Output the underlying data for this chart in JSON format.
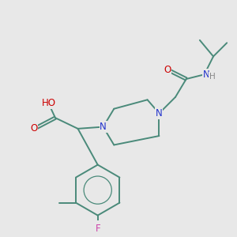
{
  "background_color": "#e8e8e8",
  "bond_color": "#4a8a7a",
  "atom_colors": {
    "N": "#2233cc",
    "O": "#cc0000",
    "F": "#cc44aa",
    "C": "#4a8a7a",
    "H": "#888888"
  },
  "font_size": 8.5,
  "line_width": 1.4,
  "figsize": [
    3.0,
    3.0
  ],
  "dpi": 100
}
